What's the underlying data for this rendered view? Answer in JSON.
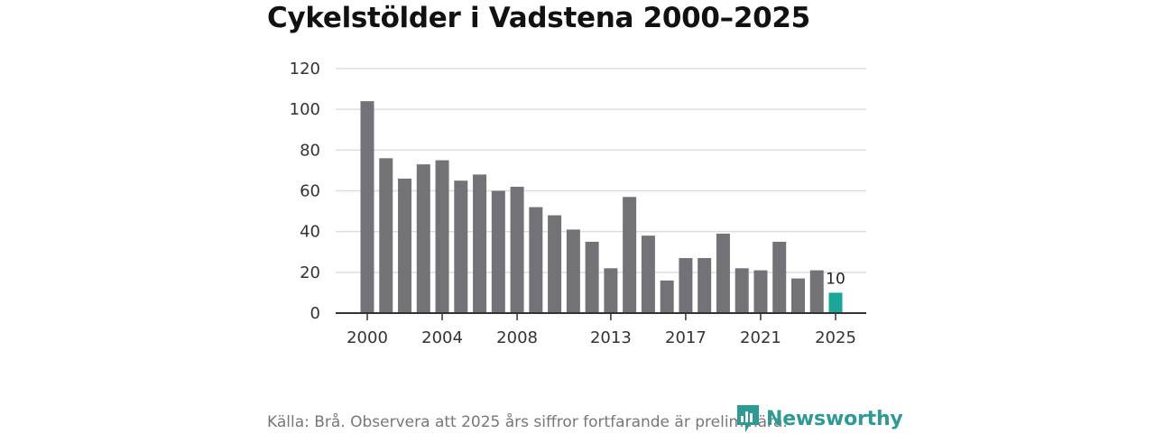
{
  "chart_data": {
    "type": "bar",
    "title": "Cykelstölder i Vadstena 2000–2025",
    "categories": [
      "2000",
      "2001",
      "2002",
      "2003",
      "2004",
      "2005",
      "2006",
      "2007",
      "2008",
      "2009",
      "2010",
      "2011",
      "2012",
      "2013",
      "2014",
      "2015",
      "2016",
      "2017",
      "2018",
      "2019",
      "2020",
      "2021",
      "2022",
      "2023",
      "2024",
      "2025"
    ],
    "values": [
      104,
      76,
      66,
      73,
      75,
      65,
      68,
      60,
      62,
      52,
      48,
      41,
      35,
      22,
      57,
      38,
      16,
      27,
      27,
      39,
      22,
      21,
      35,
      17,
      21,
      10
    ],
    "x_tick_labels": [
      "2000",
      "2004",
      "2008",
      "2013",
      "2017",
      "2021",
      "2025"
    ],
    "y_ticks": [
      0,
      20,
      40,
      60,
      80,
      100,
      120
    ],
    "ylim": [
      0,
      120
    ],
    "xlabel": "",
    "ylabel": "",
    "grid": true,
    "highlight": {
      "category": "2025",
      "value_label": "10"
    },
    "colors": {
      "bar": "#737277",
      "highlight": "#1aa79a",
      "grid": "#dddddd",
      "axis": "#333333"
    }
  },
  "footer": {
    "source": "Källa: Brå. Observera att 2025 års siffror fortfarande är preliminära.",
    "brand": "Newsworthy"
  }
}
